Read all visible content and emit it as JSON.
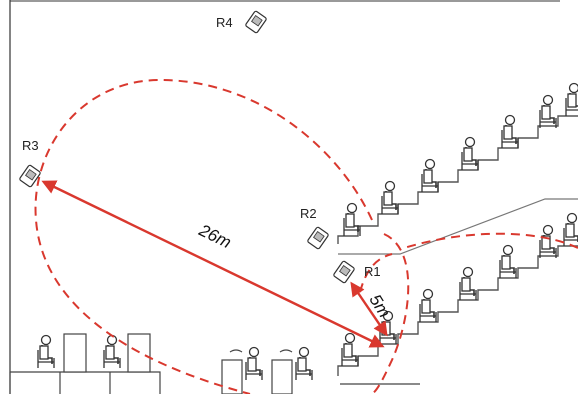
{
  "receivers": [
    {
      "label": "R1"
    },
    {
      "label": "R2"
    },
    {
      "label": "R3"
    },
    {
      "label": "R4"
    }
  ],
  "distances": [
    {
      "label": "26m",
      "from": "R3",
      "to": "seat"
    },
    {
      "label": "5m",
      "from": "R1",
      "to": "seat"
    }
  ],
  "colors": {
    "range": "#d9382e",
    "line": "#444444",
    "stairs": "#555555"
  }
}
